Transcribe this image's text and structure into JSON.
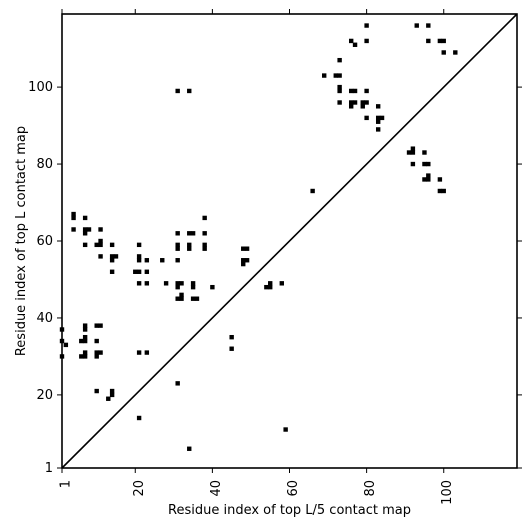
{
  "chart_data": {
    "type": "scatter",
    "xlabel": "Residue index of top L/5 contact map",
    "ylabel": "Residue index of top L contact map",
    "xlim": [
      1,
      119
    ],
    "ylim": [
      1,
      119
    ],
    "x_ticks": [
      1,
      20,
      40,
      60,
      80,
      100
    ],
    "y_ticks": [
      1,
      20,
      40,
      60,
      80,
      100
    ],
    "diagonal": true,
    "grid": false,
    "marker_color": "#000000",
    "points": [
      [
        1,
        37
      ],
      [
        1,
        34
      ],
      [
        1,
        30
      ],
      [
        2,
        33
      ],
      [
        4,
        67
      ],
      [
        4,
        66
      ],
      [
        4,
        63
      ],
      [
        7,
        66
      ],
      [
        7,
        63
      ],
      [
        7,
        62
      ],
      [
        8,
        63
      ],
      [
        7,
        59
      ],
      [
        7,
        38
      ],
      [
        7,
        37
      ],
      [
        7,
        35
      ],
      [
        7,
        34
      ],
      [
        6,
        34
      ],
      [
        6,
        30
      ],
      [
        7,
        31
      ],
      [
        7,
        30
      ],
      [
        10,
        38
      ],
      [
        11,
        38
      ],
      [
        10,
        34
      ],
      [
        10,
        31
      ],
      [
        11,
        31
      ],
      [
        10,
        30
      ],
      [
        10,
        21
      ],
      [
        13,
        19
      ],
      [
        14,
        21
      ],
      [
        14,
        20
      ],
      [
        10,
        59
      ],
      [
        11,
        60
      ],
      [
        11,
        59
      ],
      [
        11,
        63
      ],
      [
        11,
        56
      ],
      [
        14,
        59
      ],
      [
        14,
        56
      ],
      [
        14,
        55
      ],
      [
        15,
        56
      ],
      [
        14,
        52
      ],
      [
        20,
        52
      ],
      [
        21,
        52
      ],
      [
        21,
        56
      ],
      [
        21,
        55
      ],
      [
        21,
        59
      ],
      [
        23,
        55
      ],
      [
        23,
        52
      ],
      [
        21,
        49
      ],
      [
        23,
        49
      ],
      [
        21,
        31
      ],
      [
        23,
        31
      ],
      [
        21,
        14
      ],
      [
        27,
        55
      ],
      [
        28,
        49
      ],
      [
        31,
        62
      ],
      [
        31,
        59
      ],
      [
        31,
        58
      ],
      [
        31,
        55
      ],
      [
        31,
        49
      ],
      [
        31,
        48
      ],
      [
        32,
        49
      ],
      [
        31,
        45
      ],
      [
        32,
        46
      ],
      [
        32,
        45
      ],
      [
        34,
        62
      ],
      [
        35,
        62
      ],
      [
        34,
        59
      ],
      [
        34,
        58
      ],
      [
        35,
        49
      ],
      [
        35,
        48
      ],
      [
        35,
        45
      ],
      [
        36,
        45
      ],
      [
        38,
        66
      ],
      [
        38,
        62
      ],
      [
        38,
        59
      ],
      [
        38,
        58
      ],
      [
        40,
        48
      ],
      [
        31,
        23
      ],
      [
        34,
        6
      ],
      [
        31,
        99
      ],
      [
        34,
        99
      ],
      [
        45,
        35
      ],
      [
        45,
        32
      ],
      [
        48,
        58
      ],
      [
        49,
        58
      ],
      [
        48,
        55
      ],
      [
        49,
        55
      ],
      [
        48,
        54
      ],
      [
        54,
        48
      ],
      [
        55,
        49
      ],
      [
        55,
        48
      ],
      [
        58,
        49
      ],
      [
        59,
        11
      ],
      [
        66,
        73
      ],
      [
        69,
        103
      ],
      [
        72,
        103
      ],
      [
        73,
        103
      ],
      [
        73,
        107
      ],
      [
        73,
        100
      ],
      [
        73,
        99
      ],
      [
        73,
        96
      ],
      [
        76,
        112
      ],
      [
        77,
        111
      ],
      [
        76,
        99
      ],
      [
        77,
        99
      ],
      [
        76,
        96
      ],
      [
        77,
        96
      ],
      [
        76,
        95
      ],
      [
        79,
        96
      ],
      [
        80,
        96
      ],
      [
        79,
        95
      ],
      [
        80,
        99
      ],
      [
        80,
        92
      ],
      [
        80,
        112
      ],
      [
        80,
        116
      ],
      [
        83,
        95
      ],
      [
        83,
        92
      ],
      [
        84,
        92
      ],
      [
        83,
        91
      ],
      [
        83,
        89
      ],
      [
        91,
        83
      ],
      [
        92,
        84
      ],
      [
        92,
        83
      ],
      [
        92,
        80
      ],
      [
        93,
        116
      ],
      [
        95,
        83
      ],
      [
        95,
        80
      ],
      [
        96,
        80
      ],
      [
        95,
        76
      ],
      [
        96,
        77
      ],
      [
        96,
        76
      ],
      [
        96,
        112
      ],
      [
        96,
        116
      ],
      [
        99,
        76
      ],
      [
        99,
        73
      ],
      [
        100,
        73
      ],
      [
        99,
        112
      ],
      [
        100,
        112
      ],
      [
        100,
        109
      ],
      [
        103,
        109
      ]
    ]
  }
}
